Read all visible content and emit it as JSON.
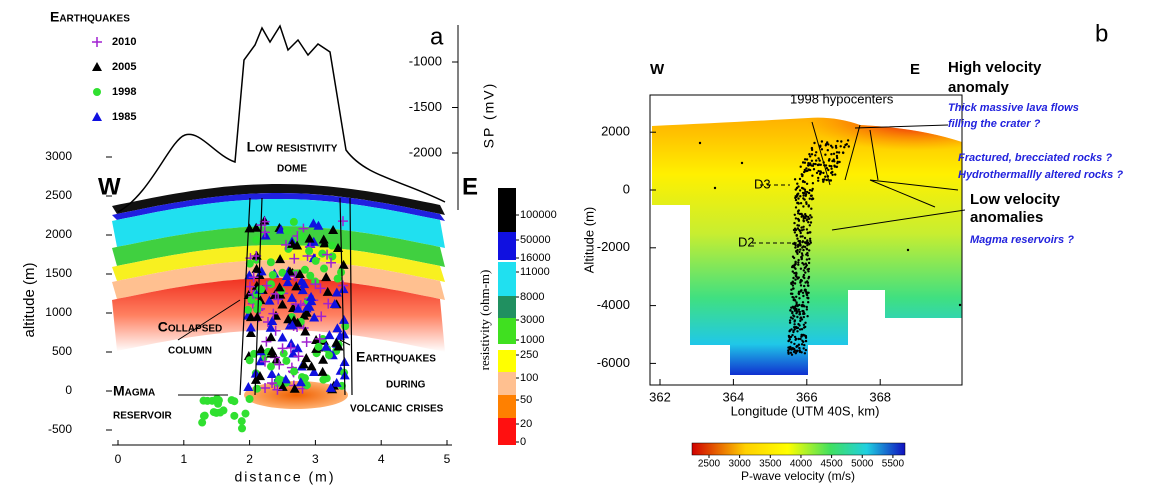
{
  "panel_a": {
    "label": "a",
    "legend": {
      "title": "Earthquakes",
      "entries": [
        "2010",
        "2005",
        "1998",
        "1985"
      ]
    },
    "y_axis": {
      "label": "altitude (m)",
      "ticks": [
        3000,
        2500,
        2000,
        1500,
        1000,
        500,
        0,
        -500
      ]
    },
    "x_axis": {
      "label": "distance (m)",
      "ticks": [
        0,
        1,
        2,
        3,
        4,
        5
      ]
    },
    "sp_axis": {
      "label": "SP (mV)",
      "ticks": [
        -1000,
        -1500,
        -2000
      ]
    },
    "colorbar": {
      "label": "resistivity (ohm-m)",
      "ticks": [
        100000,
        50000,
        16000,
        11000,
        8000,
        3000,
        1000,
        250,
        100,
        50,
        20,
        0
      ]
    },
    "annotations": {
      "west": "W",
      "east": "E",
      "dome": [
        "Low resistivity",
        "dome"
      ],
      "column": [
        "Collapsed",
        "column"
      ],
      "crises": [
        "Earthquakes",
        "during",
        "volcanic crises"
      ],
      "reservoir": [
        "Magma",
        "reservoir"
      ]
    }
  },
  "panel_b": {
    "label": "b",
    "y_axis": {
      "label": "Altitude (m)",
      "ticks": [
        2000,
        0,
        -2000,
        -4000,
        -6000
      ]
    },
    "x_axis": {
      "label": "Longitude (UTM 40S, km)",
      "ticks": [
        362,
        364,
        366,
        368
      ]
    },
    "colorbar": {
      "label": "P-wave velocity (m/s)",
      "ticks": [
        2500,
        3000,
        3500,
        4000,
        4500,
        5000,
        5500
      ]
    },
    "annotations": {
      "west": "W",
      "east": "E",
      "hypocenters": "1998 hypocenters",
      "high": [
        "High velocity",
        "anomaly"
      ],
      "high_note": [
        "Thick massive lava flows",
        "filling the crater ?"
      ],
      "fractured": [
        "Fractured, brecciated rocks ?",
        "Hydrothermallly altered rocks ?"
      ],
      "low": [
        "Low velocity",
        "anomalies"
      ],
      "low_note": "Magma reservoirs ?",
      "d3": "D3",
      "d2": "D2"
    }
  }
}
